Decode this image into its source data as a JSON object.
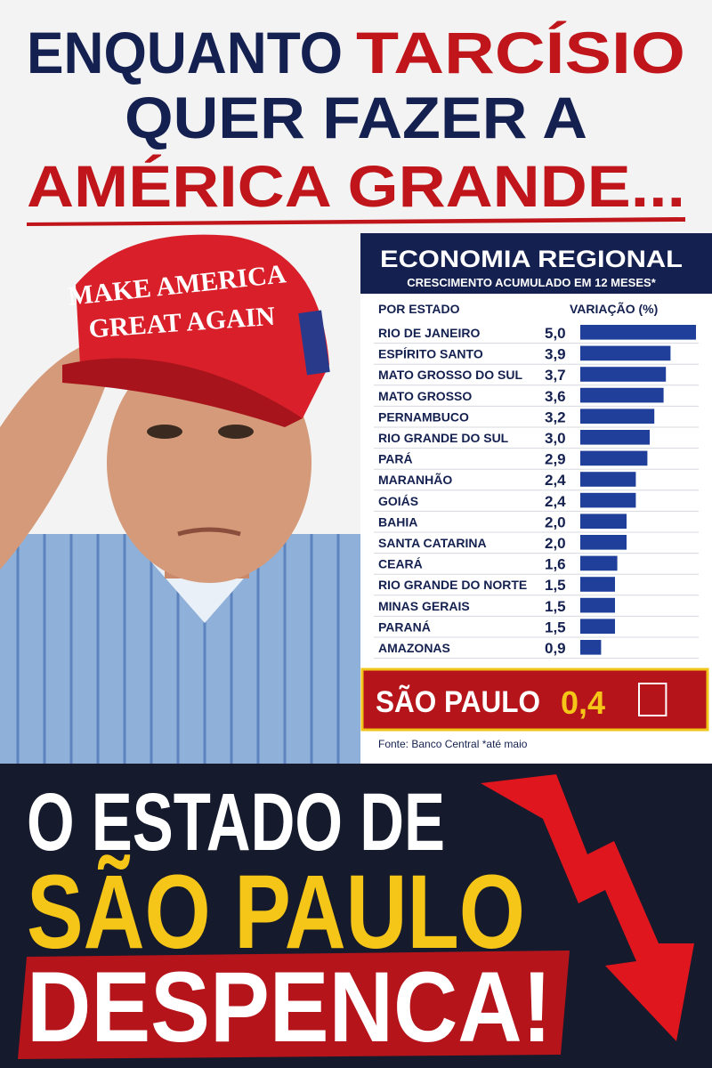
{
  "headline": [
    "ENQUANTO",
    "TARCÍSIO",
    "QUER FAZER A",
    "AMÉRICA GRANDE..."
  ],
  "cap_text": [
    "MAKE AMERICA",
    "GREAT AGAIN"
  ],
  "footer": [
    "O ESTADO DE",
    "SÃO PAULO",
    "DESPENCA!"
  ],
  "chart_data": {
    "type": "bar",
    "orientation": "horizontal",
    "title": "ECONOMIA REGIONAL",
    "subtitle": "CRESCIMENTO ACUMULADO EM 12 MESES*",
    "category_header": "POR ESTADO",
    "value_header": "VARIAÇÃO (%)",
    "categories": [
      "RIO DE JANEIRO",
      "ESPÍRITO SANTO",
      "MATO GROSSO DO SUL",
      "MATO GROSSO",
      "PERNAMBUCO",
      "RIO GRANDE DO SUL",
      "PARÁ",
      "MARANHÃO",
      "GOIÁS",
      "BAHIA",
      "SANTA CATARINA",
      "CEARÁ",
      "RIO GRANDE DO NORTE",
      "MINAS GERAIS",
      "PARANÁ",
      "AMAZONAS"
    ],
    "values": [
      5.0,
      3.9,
      3.7,
      3.6,
      3.2,
      3.0,
      2.9,
      2.4,
      2.4,
      2.0,
      2.0,
      1.6,
      1.5,
      1.5,
      1.5,
      0.9
    ],
    "value_labels": [
      "5,0",
      "3,9",
      "3,7",
      "3,6",
      "3,2",
      "3,0",
      "2,9",
      "2,4",
      "2,4",
      "2,0",
      "2,0",
      "1,6",
      "1,5",
      "1,5",
      "1,5",
      "0,9"
    ],
    "color": "#1f3f9a",
    "highlight": {
      "category": "SÃO PAULO",
      "value": 0.4,
      "value_label": "0,4"
    },
    "source": "Fonte: Banco Central  *até maio"
  }
}
